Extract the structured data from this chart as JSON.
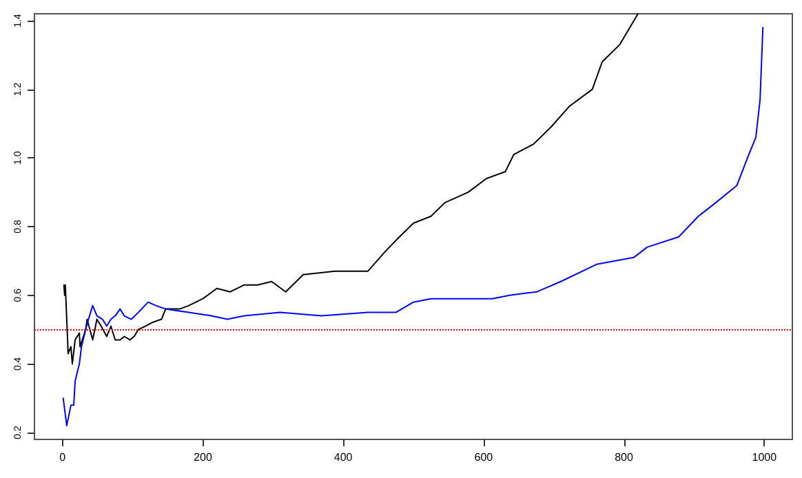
{
  "chart_data": {
    "type": "line",
    "xlim": [
      -40,
      1040
    ],
    "xticks": [
      0,
      200,
      400,
      600,
      800,
      1000
    ],
    "ylim": [
      0.18,
      1.42
    ],
    "yticks": [
      {
        "value": 0.2,
        "label": "0.2"
      },
      {
        "value": 0.4,
        "label": "0.4"
      },
      {
        "value": 0.6,
        "label": "0.6"
      },
      {
        "value": 0.8,
        "label": "0.8"
      },
      {
        "value": 1,
        "label": "1.0"
      },
      {
        "value": 1.2,
        "label": "1.2"
      },
      {
        "value": 1.4,
        "label": "1.4"
      }
    ],
    "grid": false,
    "marker": "none",
    "line_style": "solid",
    "series": [
      {
        "color": "#000000",
        "x": [
          2,
          3,
          4,
          8,
          12,
          14,
          18,
          24,
          25,
          33,
          35,
          43,
          49,
          55,
          63,
          69,
          75,
          82,
          88,
          96,
          102,
          108,
          118,
          127,
          141,
          147,
          167,
          180,
          200,
          220,
          239,
          259,
          278,
          298,
          318,
          343,
          388,
          435,
          461,
          480,
          500,
          525,
          545,
          578,
          604,
          631,
          643,
          671,
          696,
          722,
          755,
          769,
          794,
          820
        ],
        "values": [
          0.63,
          0.6,
          0.63,
          0.43,
          0.45,
          0.4,
          0.47,
          0.49,
          0.45,
          0.5,
          0.53,
          0.47,
          0.53,
          0.51,
          0.48,
          0.51,
          0.47,
          0.47,
          0.48,
          0.47,
          0.48,
          0.5,
          0.51,
          0.52,
          0.53,
          0.56,
          0.56,
          0.57,
          0.59,
          0.62,
          0.61,
          0.63,
          0.63,
          0.64,
          0.61,
          0.66,
          0.67,
          0.67,
          0.73,
          0.77,
          0.81,
          0.83,
          0.87,
          0.9,
          0.94,
          0.96,
          1.01,
          1.04,
          1.09,
          1.15,
          1.2,
          1.28,
          1.33,
          1.42
        ]
      },
      {
        "color": "#0000ff",
        "x": [
          1,
          6,
          12,
          16,
          18,
          24,
          27,
          33,
          37,
          43,
          49,
          57,
          63,
          69,
          75,
          82,
          88,
          98,
          108,
          122,
          133,
          147,
          180,
          212,
          235,
          259,
          310,
          369,
          435,
          475,
          500,
          525,
          578,
          612,
          637,
          676,
          710,
          761,
          814,
          833,
          878,
          906,
          931,
          961,
          976,
          988,
          994,
          998
        ],
        "values": [
          0.3,
          0.22,
          0.28,
          0.28,
          0.35,
          0.4,
          0.45,
          0.5,
          0.53,
          0.57,
          0.54,
          0.53,
          0.51,
          0.53,
          0.54,
          0.56,
          0.54,
          0.53,
          0.55,
          0.58,
          0.57,
          0.56,
          0.55,
          0.54,
          0.53,
          0.54,
          0.55,
          0.54,
          0.55,
          0.55,
          0.58,
          0.59,
          0.59,
          0.59,
          0.6,
          0.61,
          0.64,
          0.69,
          0.71,
          0.74,
          0.77,
          0.83,
          0.87,
          0.92,
          1.0,
          1.06,
          1.17,
          1.38
        ]
      }
    ],
    "ref_lines": [
      {
        "axis": "y",
        "value": 0.5,
        "color": "#ff0000",
        "line_style": "dotted"
      }
    ]
  }
}
